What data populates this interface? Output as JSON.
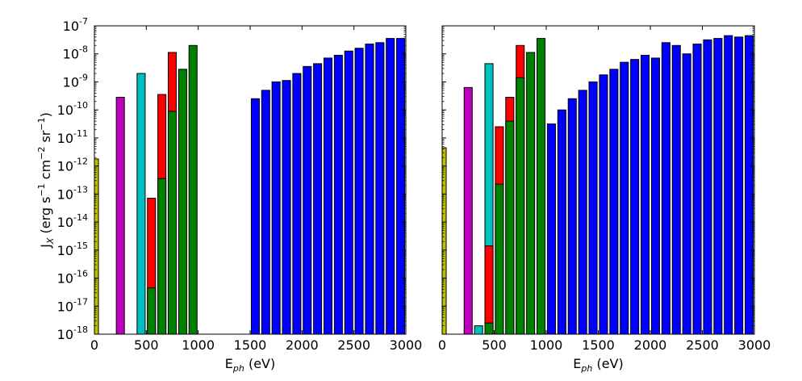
{
  "chart_data": [
    {
      "type": "bar",
      "title": "",
      "xlabel": "E_ph (eV)",
      "ylabel": "J_X (erg s^-1 cm^-2 sr^-1)",
      "xlim": [
        0,
        3000
      ],
      "ylim_log10": [
        -18,
        -7
      ],
      "yscale": "log",
      "x_ticks": [
        0,
        500,
        1000,
        1500,
        2000,
        2500,
        3000
      ],
      "y_tick_exponents": [
        -18,
        -17,
        -16,
        -15,
        -14,
        -13,
        -12,
        -11,
        -10,
        -9,
        -8,
        -7
      ],
      "series": [
        {
          "color": "#bfbf00",
          "bars": [
            {
              "x": 0,
              "log10": -11.75
            }
          ]
        },
        {
          "color": "#bf00bf",
          "bars": [
            {
              "x": 250,
              "log10": -9.55
            }
          ]
        },
        {
          "color": "#00bfbf",
          "bars": [
            {
              "x": 450,
              "log10": -8.7
            }
          ]
        },
        {
          "color": "#ff0000",
          "bars": [
            {
              "x": 550,
              "log10": -13.15
            },
            {
              "x": 650,
              "log10": -9.45
            },
            {
              "x": 750,
              "log10": -7.95
            }
          ]
        },
        {
          "color": "#008000",
          "bars": [
            {
              "x": 550,
              "log10": -16.35
            },
            {
              "x": 650,
              "log10": -12.45
            },
            {
              "x": 750,
              "log10": -10.05
            },
            {
              "x": 850,
              "log10": -8.55
            },
            {
              "x": 950,
              "log10": -7.7
            }
          ]
        },
        {
          "color": "#0000ff",
          "bars": [
            {
              "x": 1550,
              "log10": -9.6
            },
            {
              "x": 1650,
              "log10": -9.3
            },
            {
              "x": 1750,
              "log10": -9.0
            },
            {
              "x": 1850,
              "log10": -8.95
            },
            {
              "x": 1950,
              "log10": -8.7
            },
            {
              "x": 2050,
              "log10": -8.45
            },
            {
              "x": 2150,
              "log10": -8.35
            },
            {
              "x": 2250,
              "log10": -8.15
            },
            {
              "x": 2350,
              "log10": -8.05
            },
            {
              "x": 2450,
              "log10": -7.9
            },
            {
              "x": 2550,
              "log10": -7.8
            },
            {
              "x": 2650,
              "log10": -7.65
            },
            {
              "x": 2750,
              "log10": -7.6
            },
            {
              "x": 2850,
              "log10": -7.45
            },
            {
              "x": 2950,
              "log10": -7.45
            }
          ]
        }
      ]
    },
    {
      "type": "bar",
      "title": "",
      "xlabel": "E_ph (eV)",
      "ylabel": "",
      "xlim": [
        0,
        3000
      ],
      "ylim_log10": [
        -18,
        -7
      ],
      "yscale": "log",
      "x_ticks": [
        0,
        500,
        1000,
        1500,
        2000,
        2500,
        3000
      ],
      "y_tick_exponents": [],
      "series": [
        {
          "color": "#bfbf00",
          "bars": [
            {
              "x": 0,
              "log10": -11.35
            }
          ]
        },
        {
          "color": "#bf00bf",
          "bars": [
            {
              "x": 250,
              "log10": -9.2
            }
          ]
        },
        {
          "color": "#00bfbf",
          "bars": [
            {
              "x": 350,
              "log10": -17.7
            },
            {
              "x": 450,
              "log10": -8.35
            }
          ]
        },
        {
          "color": "#ff0000",
          "bars": [
            {
              "x": 450,
              "log10": -14.85
            },
            {
              "x": 550,
              "log10": -10.6
            },
            {
              "x": 650,
              "log10": -9.55
            },
            {
              "x": 750,
              "log10": -7.7
            }
          ]
        },
        {
          "color": "#008000",
          "bars": [
            {
              "x": 450,
              "log10": -17.6
            },
            {
              "x": 550,
              "log10": -12.65
            },
            {
              "x": 650,
              "log10": -10.4
            },
            {
              "x": 750,
              "log10": -8.85
            },
            {
              "x": 850,
              "log10": -7.95
            },
            {
              "x": 950,
              "log10": -7.45
            }
          ]
        },
        {
          "color": "#0000ff",
          "bars": [
            {
              "x": 1050,
              "log10": -10.5
            },
            {
              "x": 1150,
              "log10": -10.0
            },
            {
              "x": 1250,
              "log10": -9.6
            },
            {
              "x": 1350,
              "log10": -9.3
            },
            {
              "x": 1450,
              "log10": -9.0
            },
            {
              "x": 1550,
              "log10": -8.75
            },
            {
              "x": 1650,
              "log10": -8.55
            },
            {
              "x": 1750,
              "log10": -8.3
            },
            {
              "x": 1850,
              "log10": -8.2
            },
            {
              "x": 1950,
              "log10": -8.05
            },
            {
              "x": 2050,
              "log10": -8.15
            },
            {
              "x": 2150,
              "log10": -7.6
            },
            {
              "x": 2250,
              "log10": -7.7
            },
            {
              "x": 2350,
              "log10": -8.0
            },
            {
              "x": 2450,
              "log10": -7.65
            },
            {
              "x": 2550,
              "log10": -7.5
            },
            {
              "x": 2650,
              "log10": -7.45
            },
            {
              "x": 2750,
              "log10": -7.35
            },
            {
              "x": 2850,
              "log10": -7.4
            },
            {
              "x": 2950,
              "log10": -7.35
            }
          ]
        }
      ]
    }
  ]
}
